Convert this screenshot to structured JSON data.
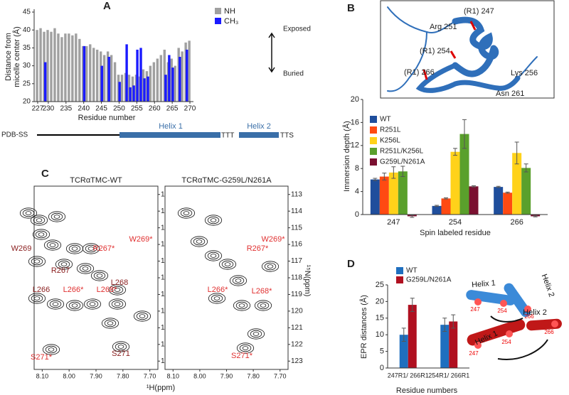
{
  "chart_data": [
    {
      "type": "bar",
      "panel": "A",
      "ylabel": [
        "Distance from",
        "micelle center (Å)"
      ],
      "xlabel": "Residue number",
      "x": [
        227,
        228,
        229,
        230,
        231,
        232,
        233,
        234,
        235,
        236,
        237,
        238,
        239,
        240,
        241,
        242,
        243,
        244,
        245,
        246,
        247,
        248,
        249,
        250,
        251,
        252,
        253,
        254,
        255,
        256,
        257,
        258,
        259,
        260,
        261,
        262,
        263,
        264,
        265,
        266,
        267,
        268,
        269,
        270
      ],
      "series": [
        {
          "name": "NH",
          "color": "#a0a0a0",
          "values": [
            40,
            40.5,
            39.5,
            40,
            39.5,
            40.5,
            39,
            38,
            39,
            39,
            38.5,
            39,
            37.5,
            35.5,
            35.5,
            36,
            35,
            34.5,
            34,
            33,
            34,
            33,
            31,
            27.5,
            27.5,
            28,
            27.5,
            27,
            27.5,
            27,
            29,
            28.5,
            30,
            31,
            32,
            33,
            34.5,
            31,
            32,
            30,
            35,
            34,
            36.5,
            37
          ]
        },
        {
          "name": "CH₃",
          "color": "#1a1aff",
          "values": [
            null,
            null,
            31,
            null,
            null,
            null,
            null,
            null,
            null,
            null,
            null,
            null,
            null,
            35.5,
            null,
            null,
            null,
            null,
            30,
            null,
            32.5,
            null,
            null,
            25.5,
            null,
            36,
            24,
            24.5,
            34.5,
            35,
            26.5,
            27,
            null,
            null,
            null,
            null,
            27.5,
            33,
            29.5,
            null,
            32.5,
            null,
            34.5,
            null
          ]
        }
      ],
      "xlim": [
        226,
        271
      ],
      "xticks": [
        227,
        230,
        235,
        240,
        245,
        250,
        255,
        260,
        265,
        270
      ],
      "ylim": [
        20,
        45
      ],
      "yticks": [
        20,
        25,
        30,
        35,
        40,
        45
      ],
      "annotations": [
        "Exposed",
        "Buried"
      ],
      "secondary_structure": {
        "label": "PDB-SS",
        "segments": [
          "Helix 1",
          "TTT",
          "Helix 2",
          "TTS"
        ]
      }
    },
    {
      "type": "grouped-bar",
      "panel": "B",
      "ylabel": "Immersion depth  (Å)",
      "xlabel": "Spin labeled residue",
      "categories": [
        "247",
        "254",
        "266"
      ],
      "series": [
        {
          "name": "WT",
          "color": "#1f4e9c",
          "values": [
            6.1,
            1.5,
            4.8
          ],
          "errors": [
            0.2,
            0.1,
            0.1
          ]
        },
        {
          "name": "R251L",
          "color": "#ff4a12",
          "values": [
            6.6,
            2.8,
            3.8
          ],
          "errors": [
            0.6,
            0.1,
            0.1
          ]
        },
        {
          "name": "K256L",
          "color": "#ffd21a",
          "values": [
            7.3,
            10.9,
            10.7
          ],
          "errors": [
            1.0,
            0.6,
            1.9
          ]
        },
        {
          "name": "R251L/K256L",
          "color": "#5aa02c",
          "values": [
            7.5,
            14.0,
            8.1
          ],
          "errors": [
            0.9,
            2.5,
            0.7
          ]
        },
        {
          "name": "G259L/N261A",
          "color": "#7a1030",
          "values": [
            -0.3,
            4.9,
            -0.3
          ],
          "errors": [
            0.2,
            0.1,
            0.1
          ]
        }
      ],
      "ylim": [
        0,
        20
      ],
      "yticks": [
        0,
        4,
        8,
        12,
        16,
        20
      ],
      "structure_labels": [
        "(R1) 247",
        "Arg 251",
        "(R1) 254",
        "(R1) 266",
        "Lys 256",
        "Asn 261"
      ]
    },
    {
      "type": "spectrum",
      "panel": "C",
      "xlabel": "¹H(ppm)",
      "ylabel": "¹⁵N(ppm)",
      "xlim": [
        8.13,
        7.67
      ],
      "xticks": [
        {
          "value": 8.1,
          "label": "8.10"
        },
        {
          "value": 8.0,
          "label": "8.00"
        },
        {
          "value": 7.9,
          "label": "7.90"
        },
        {
          "value": 7.8,
          "label": "7.80"
        },
        {
          "value": 7.7,
          "label": "7.70"
        }
      ],
      "ylim": [
        112.5,
        123.5
      ],
      "yticks": [
        113,
        114,
        115,
        116,
        117,
        118,
        119,
        120,
        121,
        122,
        123
      ],
      "panels": [
        {
          "title": "TCRαTMC-WT",
          "peaks": [
            "W269",
            "R267*",
            "W269*",
            "R267",
            "L268",
            "L266",
            "L266*",
            "L268*",
            "S271*",
            "S271"
          ]
        },
        {
          "title": "TCRαTMC-G259L/N261A",
          "peaks": [
            "W269*",
            "R267*",
            "L266*",
            "L268*",
            "S271*"
          ]
        }
      ]
    },
    {
      "type": "grouped-bar",
      "panel": "D",
      "ylabel": "EPR distances (Å)",
      "xlabel": "Residue numbers",
      "categories": [
        "247R1/ 266R1",
        "254R1/ 266R1"
      ],
      "series": [
        {
          "name": "WT",
          "color": "#1f6fbf",
          "values": [
            10,
            13
          ],
          "errors": [
            2,
            2
          ]
        },
        {
          "name": "G259L/N261A",
          "color": "#b01020",
          "values": [
            19,
            14
          ],
          "errors": [
            2,
            2
          ]
        }
      ],
      "ylim": [
        0,
        25
      ],
      "yticks": [
        0,
        5,
        10,
        15,
        20,
        25
      ],
      "cartoon_labels": [
        "Helix 1",
        "Helix 2",
        "247",
        "254",
        "266",
        "Helix 1",
        "Helix 2",
        "247",
        "254",
        "266"
      ]
    }
  ]
}
